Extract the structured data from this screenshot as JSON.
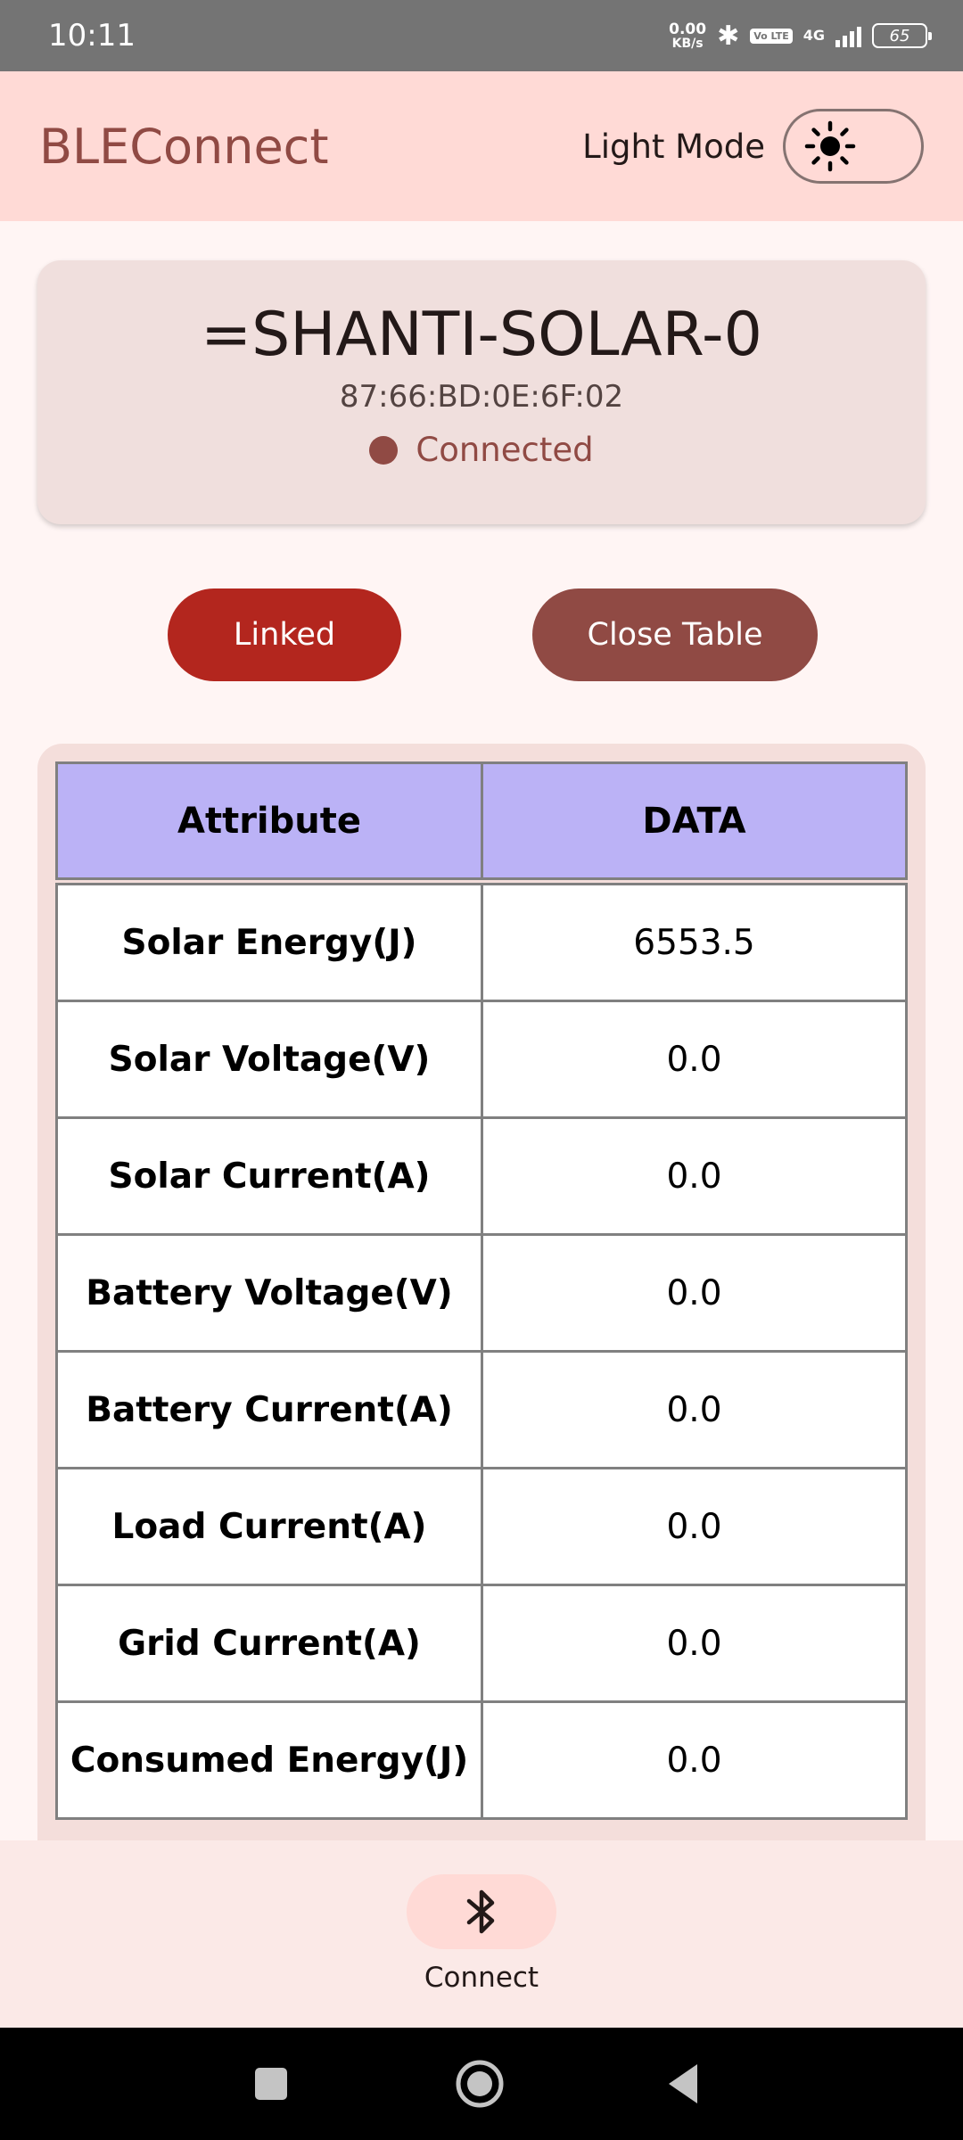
{
  "status_bar": {
    "time": "10:11",
    "net_speed_value": "0.00",
    "net_speed_unit": "KB/s",
    "volte": "Vo LTE",
    "network": "4G",
    "battery": "65"
  },
  "app_bar": {
    "title": "BLEConnect",
    "mode_label": "Light Mode",
    "mode_icon": "sun-icon"
  },
  "device": {
    "name": "=SHANTI-SOLAR-0",
    "mac": "87:66:BD:0E:6F:02",
    "status": "Connected"
  },
  "buttons": {
    "linked": "Linked",
    "close_table": "Close Table"
  },
  "table": {
    "headers": [
      "Attribute",
      "DATA"
    ],
    "rows": [
      {
        "attribute": "Solar Energy(J)",
        "value": "6553.5"
      },
      {
        "attribute": "Solar Voltage(V)",
        "value": "0.0"
      },
      {
        "attribute": "Solar Current(A)",
        "value": "0.0"
      },
      {
        "attribute": "Battery Voltage(V)",
        "value": "0.0"
      },
      {
        "attribute": "Battery Current(A)",
        "value": "0.0"
      },
      {
        "attribute": "Load Current(A)",
        "value": "0.0"
      },
      {
        "attribute": "Grid Current(A)",
        "value": "0.0"
      },
      {
        "attribute": "Consumed Energy(J)",
        "value": "0.0"
      }
    ]
  },
  "bottom_nav": {
    "connect_label": "Connect",
    "connect_icon": "bluetooth-icon"
  },
  "colors": {
    "primary": "#904a44",
    "error": "#b3261e",
    "app_bar": "#ffdad6",
    "table_header": "#bbb2f6",
    "background": "#fff5f4"
  }
}
